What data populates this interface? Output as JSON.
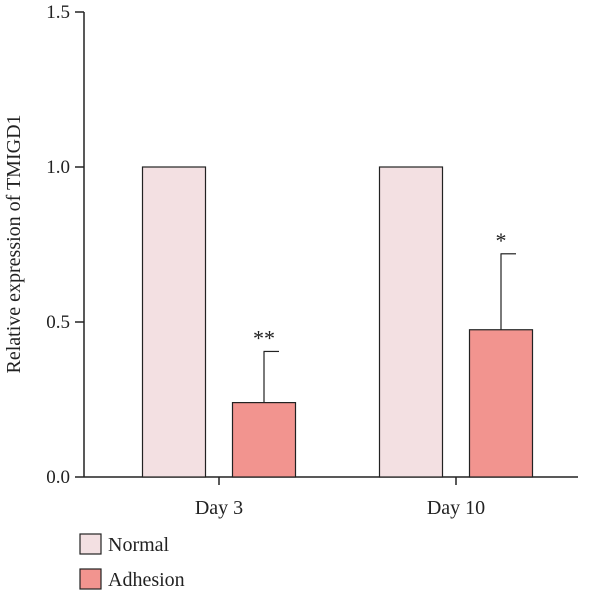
{
  "chart_data": {
    "type": "bar",
    "title": "",
    "xlabel": "",
    "ylabel": "Relative expression of TMIGD1",
    "ylim": [
      0,
      1.5
    ],
    "yticks": [
      "0.0",
      "0.5",
      "1.0",
      "1.5"
    ],
    "ytick_values": [
      0,
      0.5,
      1.0,
      1.5
    ],
    "categories": [
      "Day 3",
      "Day 10"
    ],
    "series": [
      {
        "name": "Normal",
        "values": [
          1.0,
          1.0
        ],
        "errors": [
          null,
          null
        ],
        "annotations": [
          "",
          ""
        ],
        "color": "#f3e0e2"
      },
      {
        "name": "Adhesion",
        "values": [
          0.24,
          0.475
        ],
        "errors": [
          0.165,
          0.245
        ],
        "annotations": [
          "**",
          "*"
        ],
        "color": "#f2948f"
      }
    ],
    "grid": false,
    "legend_position": "bottom-left"
  }
}
